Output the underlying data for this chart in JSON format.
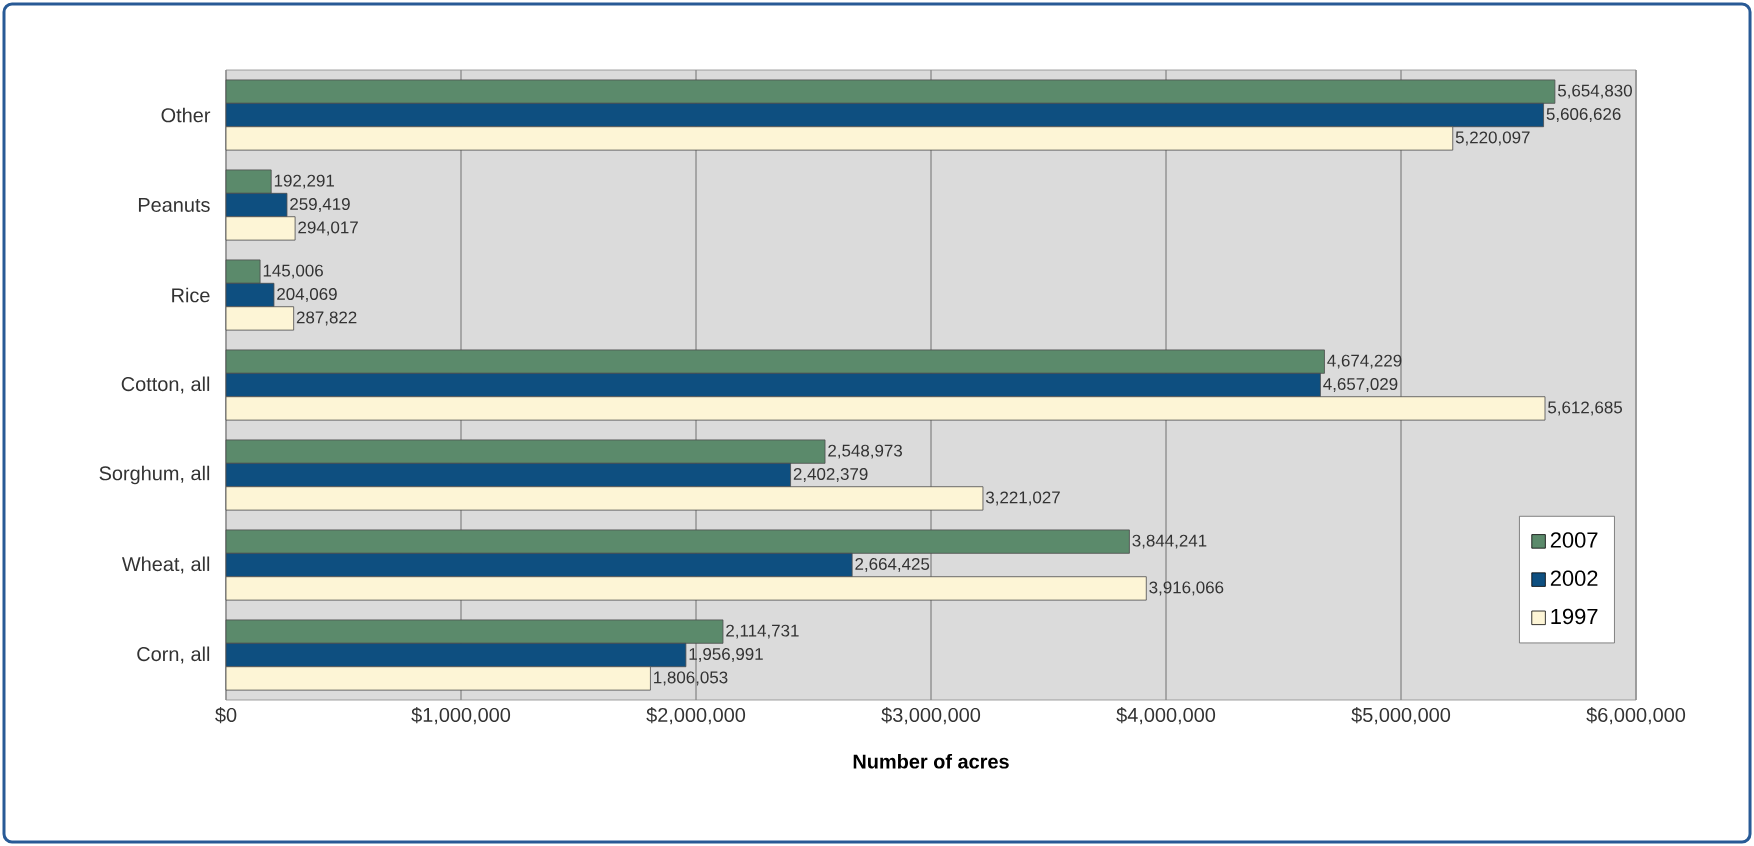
{
  "chart_data": {
    "type": "bar",
    "orientation": "horizontal",
    "xlabel": "Number of acres",
    "categories": [
      "Other",
      "Peanuts",
      "Rice",
      "Cotton, all",
      "Sorghum, all",
      "Wheat, all",
      "Corn, all"
    ],
    "series": [
      {
        "name": "2007",
        "color": "#5b8a6b",
        "values": [
          5654830,
          192291,
          145006,
          4674229,
          2548973,
          3844241,
          2114731
        ],
        "value_labels": [
          "5,654,830",
          "192,291",
          "145,006",
          "4,674,229",
          "2,548,973",
          "3,844,241",
          "2,114,731"
        ]
      },
      {
        "name": "2002",
        "color": "#0e4f80",
        "values": [
          5606626,
          259419,
          204069,
          4657029,
          2402379,
          2664425,
          1956991
        ],
        "value_labels": [
          "5,606,626",
          "259,419",
          "204,069",
          "4,657,029",
          "2,402,379",
          "2,664,425",
          "1,956,991"
        ]
      },
      {
        "name": "1997",
        "color": "#fdf5d6",
        "values": [
          5220097,
          294017,
          287822,
          5612685,
          3221027,
          3916066,
          1806053
        ],
        "value_labels": [
          "5,220,097",
          "294,017",
          "287,822",
          "5,612,685",
          "3,221,027",
          "3,916,066",
          "1,806,053"
        ]
      }
    ],
    "xlim": [
      0,
      6000000
    ],
    "xticks": [
      {
        "value": 0,
        "label": "$0"
      },
      {
        "value": 1000000,
        "label": "$1,000,000"
      },
      {
        "value": 2000000,
        "label": "$2,000,000"
      },
      {
        "value": 3000000,
        "label": "$3,000,000"
      },
      {
        "value": 4000000,
        "label": "$4,000,000"
      },
      {
        "value": 5000000,
        "label": "$5,000,000"
      },
      {
        "value": 6000000,
        "label": "$6,000,000"
      }
    ],
    "grid": "x",
    "legend": "right"
  }
}
